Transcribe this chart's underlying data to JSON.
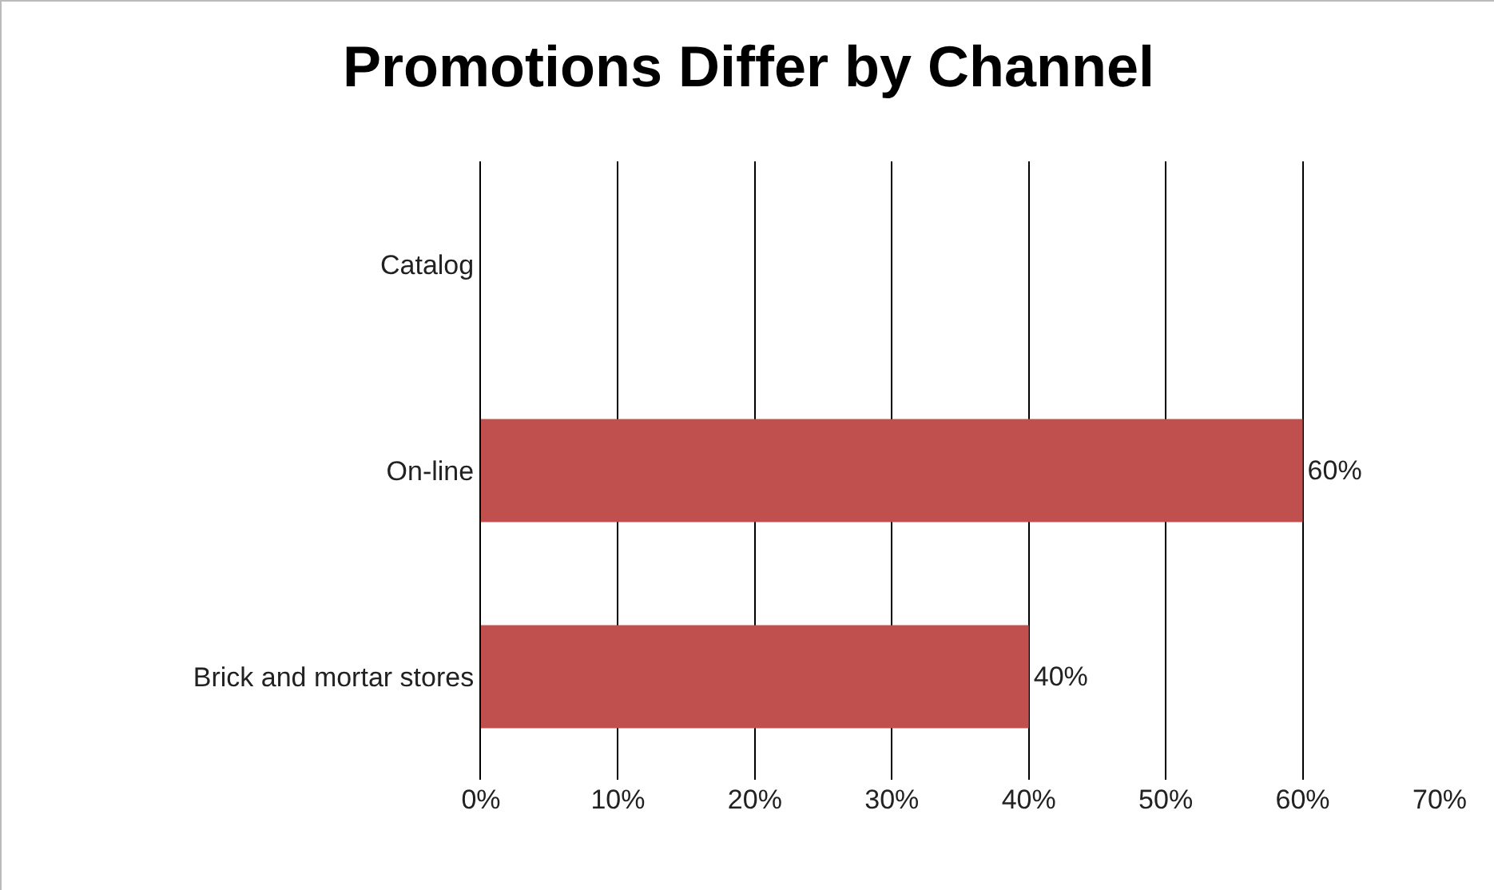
{
  "chart_data": {
    "type": "bar",
    "orientation": "horizontal",
    "title": "Promotions Differ by Channel",
    "categories": [
      "Catalog",
      "On-line",
      "Brick and mortar stores"
    ],
    "values": [
      null,
      60,
      40
    ],
    "value_labels": [
      null,
      "60%",
      "40%"
    ],
    "color": "#c0504d",
    "xlim": [
      0,
      70
    ],
    "xticks": [
      {
        "value": 0,
        "label": "0%"
      },
      {
        "value": 10,
        "label": "10%"
      },
      {
        "value": 20,
        "label": "20%"
      },
      {
        "value": 30,
        "label": "30%"
      },
      {
        "value": 40,
        "label": "40%"
      },
      {
        "value": 50,
        "label": "50%"
      },
      {
        "value": 60,
        "label": "60%"
      },
      {
        "value": 70,
        "label": "70%"
      }
    ],
    "grid": "x",
    "legend": false
  }
}
